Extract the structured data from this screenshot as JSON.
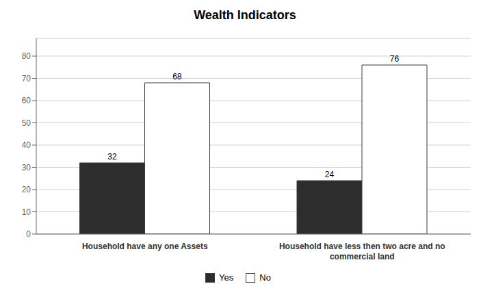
{
  "chart_data": {
    "type": "bar",
    "title": "Wealth Indicators",
    "categories": [
      "Household have any one Assets",
      "Household have less then two acre and no\ncommercial land"
    ],
    "series": [
      {
        "name": "Yes",
        "color": "#2d2d2d",
        "values": [
          32,
          24
        ]
      },
      {
        "name": "No",
        "color": "#ffffff",
        "values": [
          68,
          76
        ]
      }
    ],
    "ylim": [
      0,
      88
    ],
    "yticks": [
      0,
      10,
      20,
      30,
      40,
      50,
      60,
      70,
      80
    ],
    "grid": true,
    "legend": "bottom",
    "data_labels": true
  }
}
